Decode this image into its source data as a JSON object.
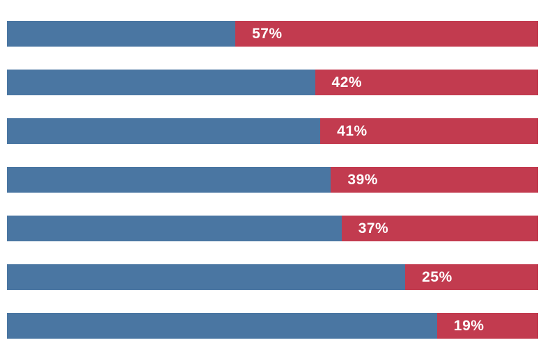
{
  "chart_data": {
    "type": "bar",
    "orientation": "horizontal",
    "stacked": true,
    "percent_scale": true,
    "title": "",
    "xlabel": "",
    "ylabel": "",
    "legend": false,
    "gridlines": false,
    "axes_visible": false,
    "category_labels_visible": false,
    "background": "#ffffff",
    "colors": {
      "left_segment": "#4a76a2",
      "right_segment": "#c23b4f",
      "label_text": "#ffffff"
    },
    "xlim": [
      0,
      100
    ],
    "bars": [
      {
        "left_value": 43,
        "right_value": 57,
        "label": "57%"
      },
      {
        "left_value": 58,
        "right_value": 42,
        "label": "42%"
      },
      {
        "left_value": 59,
        "right_value": 41,
        "label": "41%"
      },
      {
        "left_value": 61,
        "right_value": 39,
        "label": "39%"
      },
      {
        "left_value": 63,
        "right_value": 37,
        "label": "37%"
      },
      {
        "left_value": 75,
        "right_value": 25,
        "label": "25%"
      },
      {
        "left_value": 81,
        "right_value": 19,
        "label": "19%"
      }
    ]
  }
}
